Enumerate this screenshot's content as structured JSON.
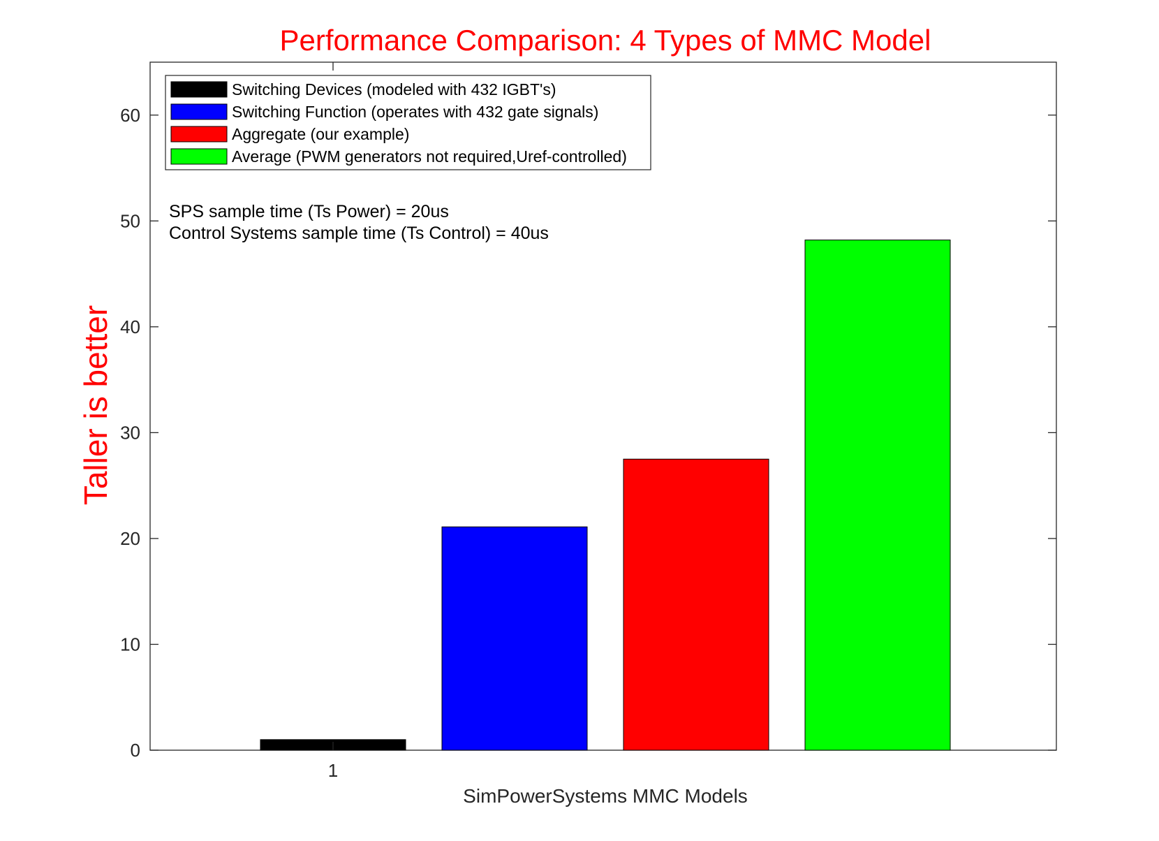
{
  "chart_data": {
    "type": "bar",
    "title": "Performance Comparison: 4 Types of MMC Model",
    "xlabel": "SimPowerSystems MMC Models",
    "ylabel": "Taller is better",
    "ylim": [
      0,
      65
    ],
    "yticks": [
      0,
      10,
      20,
      30,
      40,
      50,
      60
    ],
    "xticks": [
      "1"
    ],
    "grid": false,
    "legend_position": "top-left",
    "series": [
      {
        "name": "Switching Devices (modeled with 432 IGBT's)",
        "value": 1.0,
        "color": "#000000"
      },
      {
        "name": "Switching Function (operates with 432 gate signals)",
        "value": 21.1,
        "color": "#0000ff"
      },
      {
        "name": "Aggregate (our example)",
        "value": 27.5,
        "color": "#ff0000"
      },
      {
        "name": "Average (PWM generators not required,Uref-controlled)",
        "value": 48.2,
        "color": "#00ff00"
      }
    ],
    "annotations": [
      "SPS sample time (Ts Power) = 20us",
      "Control Systems sample time (Ts Control) = 40us"
    ]
  }
}
